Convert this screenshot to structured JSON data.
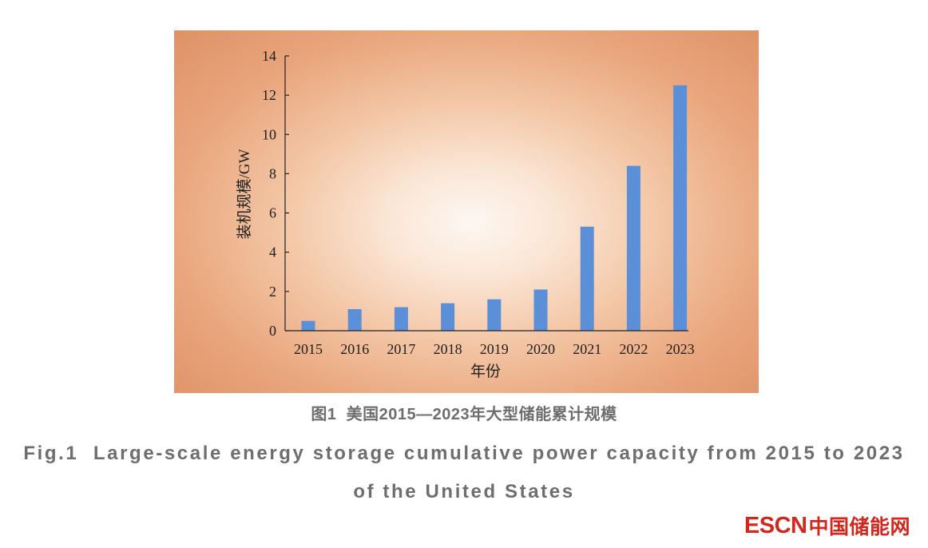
{
  "figure": {
    "caption_cn": "图1  美国2015—2023年大型储能累计规模",
    "caption_en_line1": "Fig.1  Large-scale energy storage cumulative power capacity from 2015 to 2023",
    "caption_en_line2": "of the United States"
  },
  "logo": {
    "latin": "ESCN",
    "cn": "中国储能网",
    "color": "#d4261c"
  },
  "colors": {
    "panel_center": "#fdf7f2",
    "panel_mid": "#f3c6a5",
    "panel_edge": "#df9166",
    "bar": "#5b8fd8",
    "axis": "#222222",
    "caption": "#6e6e6e"
  },
  "chart_data": {
    "type": "bar",
    "categories": [
      "2015",
      "2016",
      "2017",
      "2018",
      "2019",
      "2020",
      "2021",
      "2022",
      "2023"
    ],
    "values": [
      0.5,
      1.1,
      1.2,
      1.4,
      1.6,
      2.1,
      5.3,
      8.4,
      12.5
    ],
    "xlabel": "年份",
    "ylabel": "装机规模/GW",
    "ylim": [
      0,
      14
    ],
    "yticks": [
      0,
      2,
      4,
      6,
      8,
      10,
      12,
      14
    ],
    "grid": false,
    "legend": "none"
  }
}
